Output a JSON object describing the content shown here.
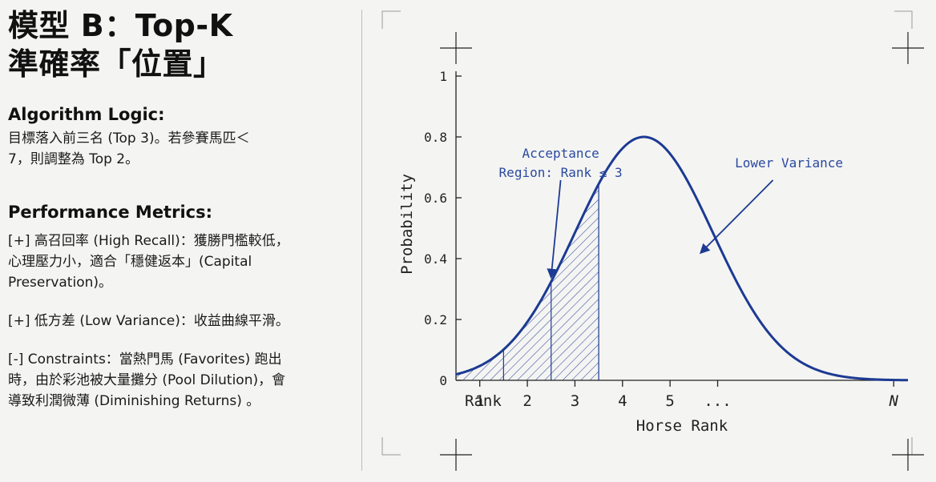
{
  "title": {
    "line1": "模型 B：Top-K",
    "line2": "準確率「位置」"
  },
  "algorithm": {
    "heading": "Algorithm Logic:",
    "text": "目標落入前三名 (Top 3)。若參賽馬匹＜\n7，則調整為 Top 2。"
  },
  "performance": {
    "heading": "Performance Metrics:",
    "metrics": [
      "[+] 高召回率 (High Recall)：獲勝門檻較低，\n心理壓力小，適合「穩健返本」(Capital\nPreservation)。",
      "[+] 低方差 (Low Variance)：收益曲線平滑。",
      "[-] Constraints：當熱門馬 (Favorites) 跑出\n時，由於彩池被大量攤分 (Pool Dilution)，會\n導致利潤微薄 (Diminishing Returns) 。"
    ]
  },
  "chart_data": {
    "type": "line",
    "xlabel": "Horse Rank",
    "ylabel": "Probability",
    "ylim": [
      0,
      1
    ],
    "xlim": [
      0.5,
      10
    ],
    "yticks": [
      {
        "value": 0,
        "label": "0"
      },
      {
        "value": 0.2,
        "label": "0.2"
      },
      {
        "value": 0.4,
        "label": "0.4"
      },
      {
        "value": 0.6,
        "label": "0.6"
      },
      {
        "value": 0.8,
        "label": "0.8"
      },
      {
        "value": 1,
        "label": "1"
      }
    ],
    "xticks": [
      {
        "value": 0.5,
        "label": "Rank",
        "italic": false
      },
      {
        "value": 1,
        "label": "1",
        "italic": false
      },
      {
        "value": 2,
        "label": "2",
        "italic": false
      },
      {
        "value": 3,
        "label": "3",
        "italic": false
      },
      {
        "value": 4,
        "label": "4",
        "italic": false
      },
      {
        "value": 5,
        "label": "5",
        "italic": false
      },
      {
        "value": 6,
        "label": "...",
        "italic": false
      },
      {
        "value": 9.7,
        "label": "N",
        "italic": true
      }
    ],
    "curve": {
      "peak_x": 4.45,
      "peak_y": 0.8,
      "sigma": 1.45
    },
    "shaded_region": {
      "from": 0.5,
      "to": 3.5,
      "dividers": [
        1.5,
        2.5,
        3.5
      ]
    },
    "grid": false,
    "annotations": [
      {
        "text": "Acceptance\nRegion: Rank ≤ 3",
        "x": 2.7,
        "y": 0.7,
        "arrow_to_x": 2.5,
        "arrow_to_y": 0.34
      },
      {
        "text": "Lower Variance",
        "x": 7.5,
        "y": 0.7,
        "arrow_to_x": 5.65,
        "arrow_to_y": 0.42
      }
    ]
  },
  "colors": {
    "curve": "#1c3a93",
    "annotation": "#2b4aa0",
    "axis": "#222222",
    "frame": "#9a9a9a"
  }
}
